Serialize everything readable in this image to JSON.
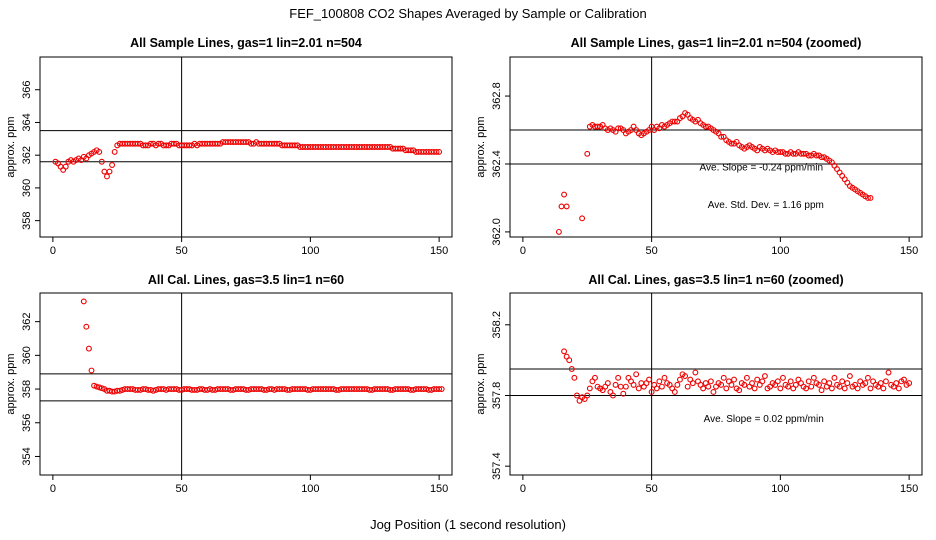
{
  "figure": {
    "title": "FEF_100808  CO2 Shapes Averaged by Sample or Calibration",
    "xlabel": "Jog Position (1 second resolution)"
  },
  "colors": {
    "points": "#ee0000",
    "axes": "#000000"
  },
  "chart_data": [
    {
      "type": "scatter",
      "title": "All Sample Lines, gas=1 lin=2.01 n=504",
      "ylabel": "approx. ppm",
      "xlim": [
        -5,
        155
      ],
      "ylim": [
        357,
        368
      ],
      "xticks": [
        0,
        50,
        100,
        150
      ],
      "yticks": [
        358,
        360,
        362,
        364,
        366
      ],
      "hlines": [
        363.5,
        361.6
      ],
      "vlines": [
        50
      ],
      "annotations": [],
      "series": [
        {
          "name": "sample average",
          "x_start": 1,
          "values": [
            361.6,
            361.5,
            361.3,
            361.1,
            361.3,
            361.6,
            361.7,
            361.6,
            361.7,
            361.8,
            361.7,
            361.9,
            361.8,
            362.0,
            362.1,
            362.2,
            362.3,
            362.2,
            361.6,
            361.0,
            360.7,
            361.0,
            361.4,
            362.2,
            362.6,
            362.7,
            362.7,
            362.7,
            362.7,
            362.7,
            362.7,
            362.7,
            362.7,
            362.7,
            362.6,
            362.6,
            362.6,
            362.7,
            362.7,
            362.6,
            362.7,
            362.7,
            362.6,
            362.6,
            362.6,
            362.7,
            362.7,
            362.7,
            362.6,
            362.6,
            362.6,
            362.6,
            362.6,
            362.6,
            362.7,
            362.6,
            362.7,
            362.7,
            362.7,
            362.7,
            362.7,
            362.7,
            362.7,
            362.7,
            362.7,
            362.8,
            362.8,
            362.8,
            362.8,
            362.8,
            362.8,
            362.8,
            362.8,
            362.8,
            362.8,
            362.8,
            362.7,
            362.7,
            362.8,
            362.7,
            362.7,
            362.7,
            362.7,
            362.7,
            362.7,
            362.7,
            362.7,
            362.7,
            362.6,
            362.6,
            362.6,
            362.6,
            362.6,
            362.6,
            362.6,
            362.5,
            362.5,
            362.5,
            362.5,
            362.5,
            362.5,
            362.5,
            362.5,
            362.5,
            362.5,
            362.5,
            362.5,
            362.5,
            362.5,
            362.5,
            362.5,
            362.5,
            362.5,
            362.5,
            362.5,
            362.5,
            362.5,
            362.5,
            362.5,
            362.5,
            362.5,
            362.5,
            362.5,
            362.5,
            362.5,
            362.5,
            362.5,
            362.5,
            362.5,
            362.5,
            362.5,
            362.4,
            362.4,
            362.4,
            362.4,
            362.4,
            362.3,
            362.3,
            362.3,
            362.3,
            362.2,
            362.2,
            362.2,
            362.2,
            362.2,
            362.2,
            362.2,
            362.2,
            362.2,
            362.2
          ]
        }
      ]
    },
    {
      "type": "scatter",
      "title": "All Sample Lines, gas=1 lin=2.01 n=504 (zoomed)",
      "ylabel": "approx. ppm",
      "xlim": [
        -5,
        155
      ],
      "ylim": [
        361.97,
        363.03
      ],
      "xticks": [
        0,
        50,
        100,
        150
      ],
      "yticks": [
        362.0,
        362.4,
        362.8
      ],
      "hlines": [
        362.6,
        362.4
      ],
      "vlines": [
        50
      ],
      "annotations": [
        "Ave. Slope =  -0.24  ppm/min",
        "Ave. Std. Dev. =  1.16  ppm"
      ],
      "series": [
        {
          "name": "sample average zoomed",
          "x_start": 14,
          "values": [
            362.0,
            362.15,
            362.22,
            362.15,
            null,
            null,
            null,
            null,
            null,
            362.08,
            null,
            362.46,
            362.62,
            362.63,
            362.62,
            362.62,
            362.62,
            362.63,
            362.61,
            362.6,
            362.61,
            362.6,
            362.59,
            362.61,
            362.61,
            362.6,
            362.58,
            362.59,
            362.6,
            362.62,
            362.6,
            362.58,
            362.57,
            362.58,
            362.59,
            362.6,
            362.62,
            362.6,
            362.62,
            362.61,
            362.63,
            362.62,
            362.63,
            362.64,
            362.65,
            362.65,
            362.65,
            362.67,
            362.68,
            362.7,
            362.69,
            362.67,
            362.66,
            362.65,
            362.66,
            362.64,
            362.63,
            362.62,
            362.62,
            362.61,
            362.6,
            362.59,
            362.58,
            362.56,
            362.56,
            362.54,
            362.53,
            362.52,
            362.52,
            362.53,
            362.51,
            362.5,
            362.49,
            362.5,
            362.51,
            362.5,
            362.49,
            362.48,
            362.5,
            362.49,
            362.48,
            362.49,
            362.48,
            362.47,
            362.48,
            362.47,
            362.47,
            362.47,
            362.46,
            362.46,
            362.47,
            362.46,
            362.46,
            362.47,
            362.46,
            362.46,
            362.46,
            362.45,
            362.45,
            362.46,
            362.45,
            362.45,
            362.44,
            362.44,
            362.43,
            362.42,
            362.41,
            362.39,
            362.37,
            362.35,
            362.33,
            362.31,
            362.29,
            362.27,
            362.26,
            362.25,
            362.24,
            362.23,
            362.22,
            362.21,
            362.2,
            362.2
          ]
        }
      ]
    },
    {
      "type": "scatter",
      "title": "All Cal. Lines, gas=3.5 lin=1 n=60",
      "ylabel": "approx. ppm",
      "xlim": [
        -5,
        155
      ],
      "ylim": [
        352.9,
        363.7
      ],
      "xticks": [
        0,
        50,
        100,
        150
      ],
      "yticks": [
        354,
        356,
        358,
        360,
        362
      ],
      "hlines": [
        358.9,
        357.3
      ],
      "vlines": [
        50
      ],
      "annotations": [],
      "series": [
        {
          "name": "calibration average",
          "x_start": 12,
          "values": [
            363.2,
            361.7,
            360.4,
            359.1,
            358.2,
            358.15,
            358.1,
            358.05,
            358.0,
            357.9,
            357.9,
            357.85,
            357.85,
            357.9,
            357.9,
            357.95,
            358.0,
            358.0,
            358.0,
            358.0,
            357.95,
            357.95,
            357.95,
            358.0,
            358.0,
            357.95,
            357.95,
            357.9,
            357.95,
            358.0,
            358.0,
            358.0,
            357.95,
            358.0,
            358.0,
            358.0,
            358.0,
            357.95,
            357.95,
            358.0,
            358.0,
            358.0,
            357.95,
            357.95,
            357.95,
            358.0,
            358.0,
            357.95,
            357.95,
            358.0,
            357.95,
            357.95,
            358.0,
            358.0,
            358.0,
            358.0,
            358.0,
            357.95,
            357.95,
            358.0,
            358.0,
            358.0,
            358.0,
            357.95,
            357.95,
            358.0,
            358.0,
            358.0,
            358.0,
            358.0,
            357.95,
            357.95,
            358.0,
            358.0,
            357.95,
            358.0,
            358.0,
            358.0,
            358.0,
            357.95,
            357.95,
            358.0,
            358.0,
            358.0,
            358.0,
            358.0,
            358.0,
            357.95,
            357.95,
            358.0,
            358.0,
            358.0,
            358.0,
            358.0,
            358.0,
            358.0,
            358.0,
            358.0,
            357.95,
            357.95,
            358.0,
            358.0,
            358.0,
            358.0,
            358.0,
            358.0,
            358.0,
            358.0,
            358.0,
            358.0,
            358.0,
            357.95,
            357.95,
            358.0,
            358.0,
            358.0,
            358.0,
            358.0,
            358.0,
            357.95,
            357.95,
            358.0,
            358.0,
            358.0,
            358.0,
            358.0,
            358.0,
            357.95,
            357.95,
            358.0,
            358.0,
            358.0,
            358.0,
            358.0,
            357.95,
            357.95,
            358.0,
            358.0,
            358.0,
            358.0
          ]
        }
      ]
    },
    {
      "type": "scatter",
      "title": "All Cal. Lines, gas=3.5 lin=1 n=60 (zoomed)",
      "ylabel": "approx. ppm",
      "xlim": [
        -5,
        155
      ],
      "ylim": [
        357.35,
        358.38
      ],
      "xticks": [
        0,
        50,
        100,
        150
      ],
      "yticks": [
        357.4,
        357.8,
        358.2
      ],
      "hlines": [
        357.95,
        357.8
      ],
      "vlines": [
        50
      ],
      "annotations": [
        "Ave. Slope =  0.02  ppm/min"
      ],
      "series": [
        {
          "name": "calibration average zoomed",
          "x_start": 16,
          "values": [
            358.05,
            358.02,
            358.0,
            357.95,
            357.9,
            357.8,
            357.77,
            357.79,
            357.78,
            357.8,
            357.84,
            357.88,
            357.9,
            357.85,
            357.84,
            357.83,
            357.85,
            357.87,
            357.82,
            357.8,
            357.86,
            357.9,
            357.85,
            357.81,
            357.85,
            357.9,
            357.88,
            357.86,
            357.92,
            357.84,
            357.87,
            357.85,
            357.87,
            357.89,
            357.82,
            357.86,
            357.84,
            357.88,
            357.85,
            357.9,
            357.87,
            357.86,
            357.84,
            357.82,
            357.86,
            357.89,
            357.92,
            357.91,
            357.85,
            357.89,
            357.87,
            357.93,
            357.88,
            357.86,
            357.84,
            357.87,
            357.85,
            357.88,
            357.82,
            357.85,
            357.87,
            357.86,
            357.9,
            357.84,
            357.88,
            357.86,
            357.89,
            357.84,
            357.83,
            357.87,
            357.86,
            357.9,
            357.85,
            357.87,
            357.84,
            357.89,
            357.86,
            357.88,
            357.91,
            357.84,
            357.85,
            357.87,
            357.86,
            357.88,
            357.84,
            357.9,
            357.86,
            357.85,
            357.88,
            357.84,
            357.86,
            357.89,
            357.87,
            357.85,
            357.84,
            357.88,
            357.85,
            357.9,
            357.87,
            357.86,
            357.83,
            357.88,
            357.85,
            357.87,
            357.84,
            357.9,
            357.86,
            357.85,
            357.88,
            357.84,
            357.87,
            357.91,
            357.85,
            357.86,
            357.84,
            357.88,
            357.86,
            357.87,
            357.9,
            357.84,
            357.88,
            357.86,
            357.85,
            357.87,
            357.84,
            357.88,
            357.93,
            357.86,
            357.85,
            357.87,
            357.84,
            357.88,
            357.89,
            357.86,
            357.87
          ]
        }
      ]
    }
  ]
}
